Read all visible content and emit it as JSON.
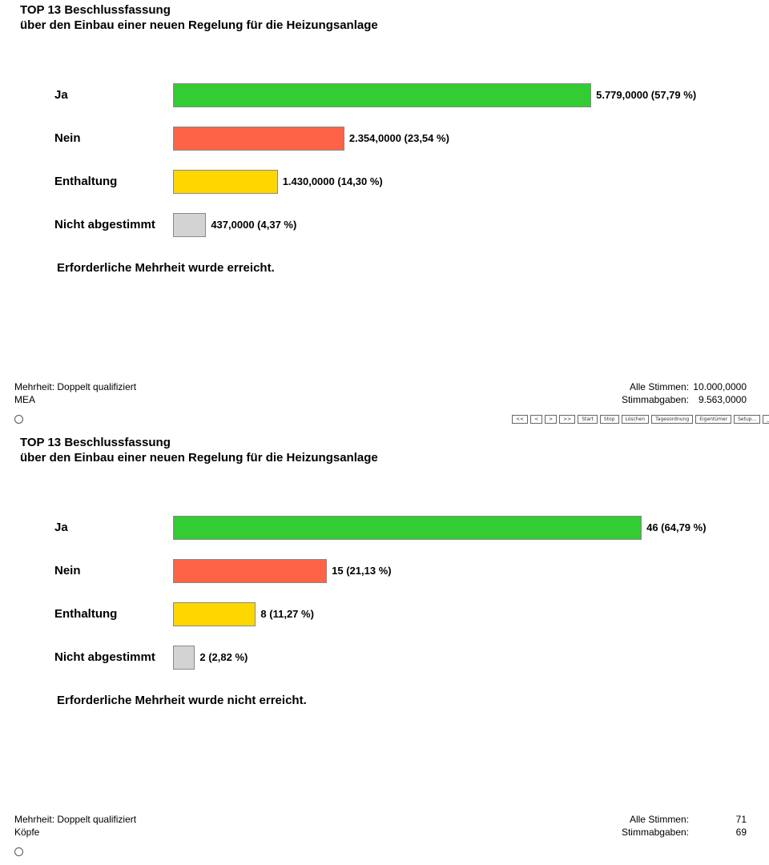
{
  "panels": [
    {
      "title_line1": "TOP 13 Beschlussfassung",
      "title_line2": "über den Einbau einer neuen Regelung für die Heizungsanlage",
      "categories": [
        "Ja",
        "Nein",
        "Enthaltung",
        "Nicht abgestimmt"
      ],
      "values": [
        5779,
        2354,
        1430,
        437
      ],
      "percents": [
        57.79,
        23.54,
        14.3,
        4.37
      ],
      "value_labels": [
        "5.779,0000 (57,79 %)",
        "2.354,0000 (23,54 %)",
        "1.430,0000 (14,30 %)",
        "437,0000 (4,37 %)"
      ],
      "colors": [
        "#33cc33",
        "#ff6347",
        "#ffd700",
        "#d3d3d3"
      ],
      "result": "Erforderliche Mehrheit wurde erreicht.",
      "majority": "Mehrheit: Doppelt qualifiziert",
      "method": "MEA",
      "total_label": "Alle Stimmen:",
      "total_value": "10.000,0000",
      "cast_label": "Stimmabgaben:",
      "cast_value": "9.563,0000"
    },
    {
      "title_line1": "TOP 13 Beschlussfassung",
      "title_line2": "über den Einbau einer neuen Regelung für die Heizungsanlage",
      "categories": [
        "Ja",
        "Nein",
        "Enthaltung",
        "Nicht abgestimmt"
      ],
      "values": [
        46,
        15,
        8,
        2
      ],
      "percents": [
        64.79,
        21.13,
        11.27,
        2.82
      ],
      "value_labels": [
        "46 (64,79 %)",
        "15 (21,13 %)",
        "8 (11,27 %)",
        "2 (2,82 %)"
      ],
      "colors": [
        "#33cc33",
        "#ff6347",
        "#ffd700",
        "#d3d3d3"
      ],
      "result": "Erforderliche Mehrheit wurde nicht erreicht.",
      "majority": "Mehrheit: Doppelt qualifiziert",
      "method": "Köpfe",
      "total_label": "Alle Stimmen:",
      "total_value": "71",
      "cast_label": "Stimmabgaben:",
      "cast_value": "69"
    }
  ],
  "toolbar": [
    "<<",
    "<",
    ">",
    ">>",
    "Start",
    "Stop",
    "Löschen",
    "Tagesordnung",
    "Eigentümer",
    "Setup...",
    "_",
    "×"
  ]
}
